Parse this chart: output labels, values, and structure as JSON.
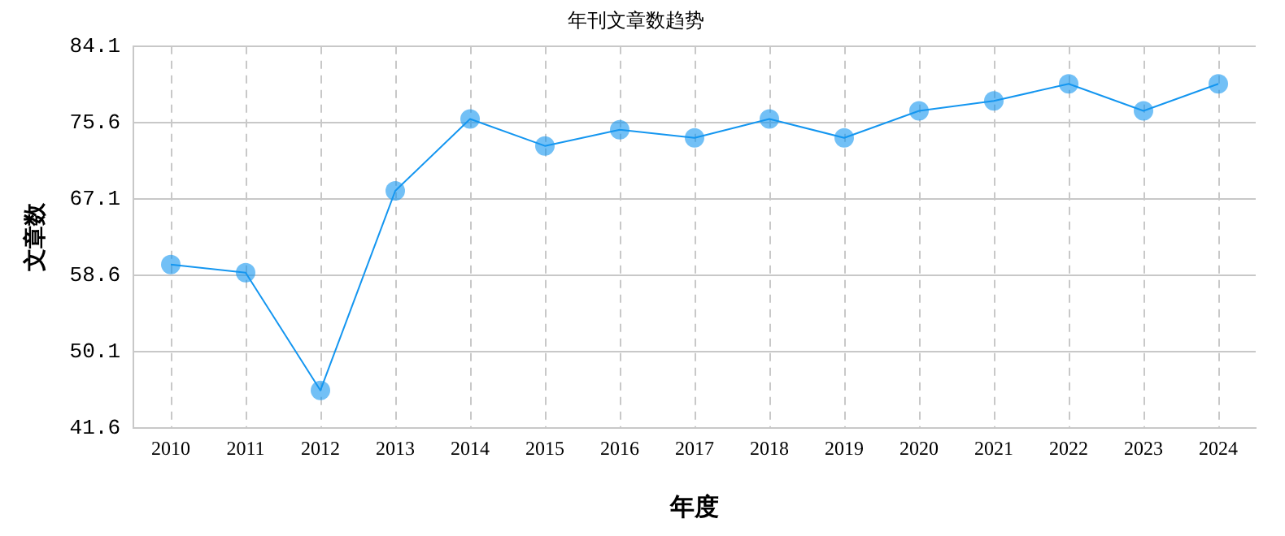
{
  "chart_data": {
    "type": "line",
    "title": "年刊文章数趋势",
    "xlabel": "年度",
    "ylabel": "文章数",
    "categories": [
      "2010",
      "2011",
      "2012",
      "2013",
      "2014",
      "2015",
      "2016",
      "2017",
      "2018",
      "2019",
      "2020",
      "2021",
      "2022",
      "2023",
      "2024"
    ],
    "series": [
      {
        "color": "#1496f0",
        "values": [
          59.8,
          58.9,
          45.8,
          68.0,
          76.0,
          73.0,
          74.8,
          73.9,
          76.0,
          73.9,
          76.9,
          78.0,
          79.9,
          76.9,
          79.9
        ]
      }
    ],
    "ylim": [
      41.6,
      84.1
    ],
    "yticks": [
      41.6,
      50.1,
      58.6,
      67.1,
      75.6,
      84.1
    ],
    "grid": true,
    "legend": false,
    "marker": "circle",
    "line_style": "solid"
  }
}
